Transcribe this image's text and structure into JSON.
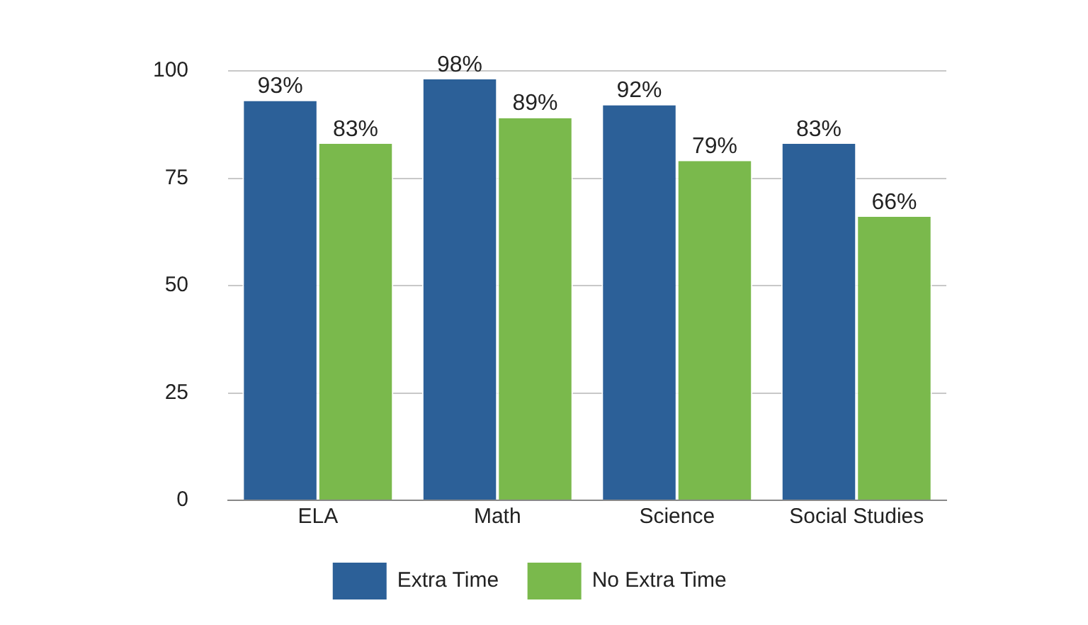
{
  "chart_data": {
    "type": "bar",
    "categories": [
      "ELA",
      "Math",
      "Science",
      "Social Studies"
    ],
    "series": [
      {
        "name": "Extra Time",
        "color": "#2c6098",
        "values": [
          93,
          98,
          92,
          83
        ],
        "value_labels": [
          "93%",
          "98%",
          "92%",
          "83%"
        ]
      },
      {
        "name": "No Extra Time",
        "color": "#7ab94c",
        "values": [
          83,
          89,
          79,
          66
        ],
        "value_labels": [
          "83%",
          "89%",
          "79%",
          "66%"
        ]
      }
    ],
    "ylim": [
      0,
      100
    ],
    "yticks": [
      0,
      25,
      50,
      75,
      100
    ],
    "grid": "y",
    "legend": "bottom"
  }
}
